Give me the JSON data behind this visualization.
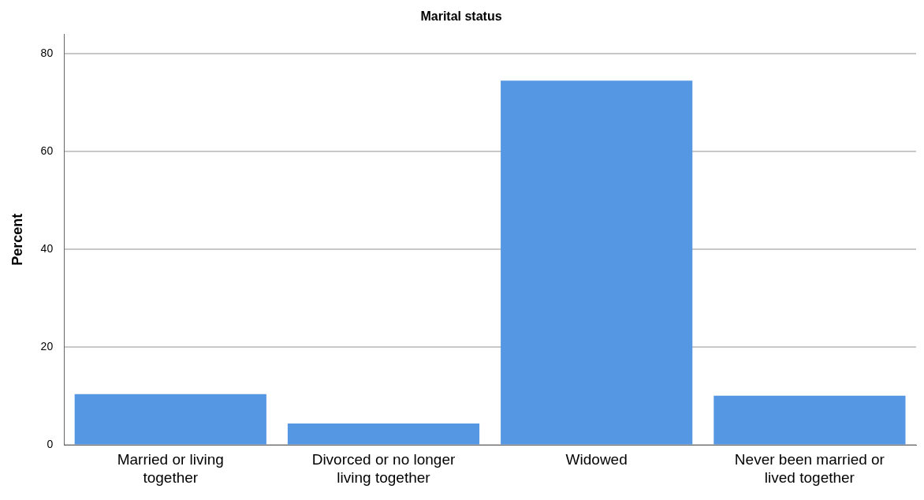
{
  "chart_data": {
    "type": "bar",
    "title": "Marital status",
    "ylabel": "Percent",
    "categories": [
      "Married or living together",
      "Divorced or no longer living together",
      "Widowed",
      "Never been married or lived together"
    ],
    "values": [
      10.4,
      4.4,
      74.5,
      10.1
    ],
    "color": "#5597e3",
    "ylim": [
      0,
      84
    ],
    "yticks": [
      0,
      20,
      40,
      60,
      80
    ],
    "grid": "y"
  }
}
